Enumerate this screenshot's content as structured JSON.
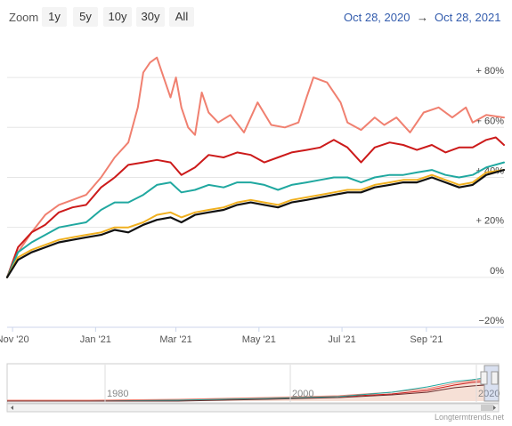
{
  "toolbar": {
    "zoom_label": "Zoom",
    "buttons": [
      {
        "label": "1y",
        "active": true
      },
      {
        "label": "5y",
        "active": false
      },
      {
        "label": "10y",
        "active": false
      },
      {
        "label": "30y",
        "active": false
      },
      {
        "label": "All",
        "active": false
      }
    ],
    "range_from": "Oct 28, 2020",
    "range_arrow": "→",
    "range_to": "Oct 28, 2021"
  },
  "chart_data": {
    "type": "line",
    "title": "",
    "xlabel": "",
    "ylabel": "",
    "x_range": [
      "2020-10-28",
      "2021-10-28"
    ],
    "ylim": [
      -20,
      95
    ],
    "y_ticks": [
      -20,
      0,
      20,
      40,
      60,
      80
    ],
    "y_tick_labels": [
      "−20%",
      "0%",
      "+ 20%",
      "+ 40%",
      "+ 60%",
      "+ 80%"
    ],
    "x_tick_labels": [
      "Nov '20",
      "Jan '21",
      "Mar '21",
      "May '21",
      "Jul '21",
      "Sep '21"
    ],
    "x_tick_dates": [
      "2020-11-01",
      "2021-01-01",
      "2021-03-01",
      "2021-05-01",
      "2021-07-01",
      "2021-09-01"
    ],
    "grid": true,
    "series": [
      {
        "color": "#f08070",
        "points": [
          [
            "2020-10-28",
            0
          ],
          [
            "2020-11-05",
            10
          ],
          [
            "2020-11-15",
            18
          ],
          [
            "2020-11-25",
            25
          ],
          [
            "2020-12-05",
            29
          ],
          [
            "2020-12-15",
            31
          ],
          [
            "2020-12-25",
            33
          ],
          [
            "2021-01-05",
            40
          ],
          [
            "2021-01-15",
            48
          ],
          [
            "2021-01-25",
            54
          ],
          [
            "2021-02-01",
            68
          ],
          [
            "2021-02-05",
            82
          ],
          [
            "2021-02-10",
            86
          ],
          [
            "2021-02-15",
            88
          ],
          [
            "2021-02-20",
            80
          ],
          [
            "2021-02-25",
            72
          ],
          [
            "2021-03-01",
            80
          ],
          [
            "2021-03-05",
            68
          ],
          [
            "2021-03-10",
            60
          ],
          [
            "2021-03-15",
            57
          ],
          [
            "2021-03-20",
            74
          ],
          [
            "2021-03-25",
            66
          ],
          [
            "2021-04-01",
            62
          ],
          [
            "2021-04-10",
            65
          ],
          [
            "2021-04-20",
            58
          ],
          [
            "2021-04-30",
            70
          ],
          [
            "2021-05-10",
            61
          ],
          [
            "2021-05-20",
            60
          ],
          [
            "2021-05-30",
            62
          ],
          [
            "2021-06-05",
            72
          ],
          [
            "2021-06-10",
            80
          ],
          [
            "2021-06-20",
            78
          ],
          [
            "2021-06-30",
            70
          ],
          [
            "2021-07-05",
            62
          ],
          [
            "2021-07-15",
            59
          ],
          [
            "2021-07-25",
            64
          ],
          [
            "2021-08-01",
            61
          ],
          [
            "2021-08-10",
            64
          ],
          [
            "2021-08-20",
            58
          ],
          [
            "2021-08-30",
            66
          ],
          [
            "2021-09-10",
            68
          ],
          [
            "2021-09-20",
            64
          ],
          [
            "2021-09-30",
            68
          ],
          [
            "2021-10-05",
            62
          ],
          [
            "2021-10-15",
            65
          ],
          [
            "2021-10-28",
            64
          ]
        ]
      },
      {
        "color": "#cc1a1a",
        "points": [
          [
            "2020-10-28",
            0
          ],
          [
            "2020-11-05",
            12
          ],
          [
            "2020-11-15",
            18
          ],
          [
            "2020-11-25",
            21
          ],
          [
            "2020-12-05",
            26
          ],
          [
            "2020-12-15",
            28
          ],
          [
            "2020-12-25",
            29
          ],
          [
            "2021-01-05",
            36
          ],
          [
            "2021-01-15",
            40
          ],
          [
            "2021-01-25",
            45
          ],
          [
            "2021-02-05",
            46
          ],
          [
            "2021-02-15",
            47
          ],
          [
            "2021-02-25",
            46
          ],
          [
            "2021-03-05",
            41
          ],
          [
            "2021-03-15",
            44
          ],
          [
            "2021-03-25",
            49
          ],
          [
            "2021-04-05",
            48
          ],
          [
            "2021-04-15",
            50
          ],
          [
            "2021-04-25",
            49
          ],
          [
            "2021-05-05",
            46
          ],
          [
            "2021-05-15",
            48
          ],
          [
            "2021-05-25",
            50
          ],
          [
            "2021-06-05",
            51
          ],
          [
            "2021-06-15",
            52
          ],
          [
            "2021-06-25",
            55
          ],
          [
            "2021-07-05",
            52
          ],
          [
            "2021-07-15",
            46
          ],
          [
            "2021-07-25",
            52
          ],
          [
            "2021-08-05",
            54
          ],
          [
            "2021-08-15",
            53
          ],
          [
            "2021-08-25",
            51
          ],
          [
            "2021-09-05",
            53
          ],
          [
            "2021-09-15",
            50
          ],
          [
            "2021-09-25",
            52
          ],
          [
            "2021-10-05",
            52
          ],
          [
            "2021-10-15",
            55
          ],
          [
            "2021-10-22",
            56
          ],
          [
            "2021-10-28",
            53
          ]
        ]
      },
      {
        "color": "#20a8a0",
        "points": [
          [
            "2020-10-28",
            0
          ],
          [
            "2020-11-05",
            10
          ],
          [
            "2020-11-15",
            14
          ],
          [
            "2020-11-25",
            17
          ],
          [
            "2020-12-05",
            20
          ],
          [
            "2020-12-15",
            21
          ],
          [
            "2020-12-25",
            22
          ],
          [
            "2021-01-05",
            27
          ],
          [
            "2021-01-15",
            30
          ],
          [
            "2021-01-25",
            30
          ],
          [
            "2021-02-05",
            33
          ],
          [
            "2021-02-15",
            37
          ],
          [
            "2021-02-25",
            38
          ],
          [
            "2021-03-05",
            34
          ],
          [
            "2021-03-15",
            35
          ],
          [
            "2021-03-25",
            37
          ],
          [
            "2021-04-05",
            36
          ],
          [
            "2021-04-15",
            38
          ],
          [
            "2021-04-25",
            38
          ],
          [
            "2021-05-05",
            37
          ],
          [
            "2021-05-15",
            35
          ],
          [
            "2021-05-25",
            37
          ],
          [
            "2021-06-05",
            38
          ],
          [
            "2021-06-15",
            39
          ],
          [
            "2021-06-25",
            40
          ],
          [
            "2021-07-05",
            40
          ],
          [
            "2021-07-15",
            38
          ],
          [
            "2021-07-25",
            40
          ],
          [
            "2021-08-05",
            41
          ],
          [
            "2021-08-15",
            41
          ],
          [
            "2021-08-25",
            42
          ],
          [
            "2021-09-05",
            43
          ],
          [
            "2021-09-15",
            41
          ],
          [
            "2021-09-25",
            40
          ],
          [
            "2021-10-05",
            41
          ],
          [
            "2021-10-15",
            44
          ],
          [
            "2021-10-28",
            46
          ]
        ]
      },
      {
        "color": "#f0b020",
        "points": [
          [
            "2020-10-28",
            0
          ],
          [
            "2020-11-05",
            8
          ],
          [
            "2020-11-15",
            11
          ],
          [
            "2020-11-25",
            13
          ],
          [
            "2020-12-05",
            15
          ],
          [
            "2020-12-15",
            16
          ],
          [
            "2020-12-25",
            17
          ],
          [
            "2021-01-05",
            18
          ],
          [
            "2021-01-15",
            20
          ],
          [
            "2021-01-25",
            20
          ],
          [
            "2021-02-05",
            22
          ],
          [
            "2021-02-15",
            25
          ],
          [
            "2021-02-25",
            26
          ],
          [
            "2021-03-05",
            24
          ],
          [
            "2021-03-15",
            26
          ],
          [
            "2021-03-25",
            27
          ],
          [
            "2021-04-05",
            28
          ],
          [
            "2021-04-15",
            30
          ],
          [
            "2021-04-25",
            31
          ],
          [
            "2021-05-05",
            30
          ],
          [
            "2021-05-15",
            29
          ],
          [
            "2021-05-25",
            31
          ],
          [
            "2021-06-05",
            32
          ],
          [
            "2021-06-15",
            33
          ],
          [
            "2021-06-25",
            34
          ],
          [
            "2021-07-05",
            35
          ],
          [
            "2021-07-15",
            35
          ],
          [
            "2021-07-25",
            37
          ],
          [
            "2021-08-05",
            38
          ],
          [
            "2021-08-15",
            39
          ],
          [
            "2021-08-25",
            39
          ],
          [
            "2021-09-05",
            41
          ],
          [
            "2021-09-15",
            39
          ],
          [
            "2021-09-25",
            37
          ],
          [
            "2021-10-05",
            38
          ],
          [
            "2021-10-15",
            42
          ],
          [
            "2021-10-28",
            43
          ]
        ]
      },
      {
        "color": "#111111",
        "points": [
          [
            "2020-10-28",
            0
          ],
          [
            "2020-11-05",
            7
          ],
          [
            "2020-11-15",
            10
          ],
          [
            "2020-11-25",
            12
          ],
          [
            "2020-12-05",
            14
          ],
          [
            "2020-12-15",
            15
          ],
          [
            "2020-12-25",
            16
          ],
          [
            "2021-01-05",
            17
          ],
          [
            "2021-01-15",
            19
          ],
          [
            "2021-01-25",
            18
          ],
          [
            "2021-02-05",
            21
          ],
          [
            "2021-02-15",
            23
          ],
          [
            "2021-02-25",
            24
          ],
          [
            "2021-03-05",
            22
          ],
          [
            "2021-03-15",
            25
          ],
          [
            "2021-03-25",
            26
          ],
          [
            "2021-04-05",
            27
          ],
          [
            "2021-04-15",
            29
          ],
          [
            "2021-04-25",
            30
          ],
          [
            "2021-05-05",
            29
          ],
          [
            "2021-05-15",
            28
          ],
          [
            "2021-05-25",
            30
          ],
          [
            "2021-06-05",
            31
          ],
          [
            "2021-06-15",
            32
          ],
          [
            "2021-06-25",
            33
          ],
          [
            "2021-07-05",
            34
          ],
          [
            "2021-07-15",
            34
          ],
          [
            "2021-07-25",
            36
          ],
          [
            "2021-08-05",
            37
          ],
          [
            "2021-08-15",
            38
          ],
          [
            "2021-08-25",
            38
          ],
          [
            "2021-09-05",
            40
          ],
          [
            "2021-09-15",
            38
          ],
          [
            "2021-09-25",
            36
          ],
          [
            "2021-10-05",
            37
          ],
          [
            "2021-10-15",
            41
          ],
          [
            "2021-10-28",
            43
          ]
        ]
      }
    ]
  },
  "navigator": {
    "years": [
      "1980",
      "2000",
      "2020"
    ]
  },
  "credit": "Longtermtrends.net"
}
